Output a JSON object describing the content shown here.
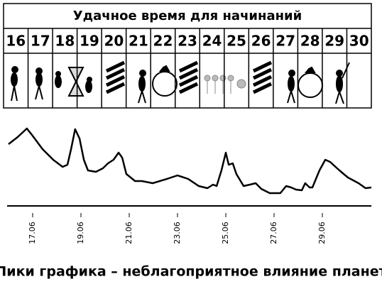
{
  "header": {
    "title": "Удачное время для начинаний",
    "days": [
      16,
      17,
      18,
      19,
      20,
      21,
      22,
      23,
      24,
      25,
      26,
      27,
      28,
      29,
      30
    ]
  },
  "chart_data": {
    "type": "line",
    "caption": "Пики графика – неблагоприятное влияние планет",
    "x": [
      16.0,
      16.38,
      16.76,
      16.97,
      17.41,
      17.85,
      18.24,
      18.44,
      18.59,
      18.76,
      18.94,
      19.12,
      19.29,
      19.62,
      19.91,
      20.12,
      20.35,
      20.56,
      20.71,
      20.88,
      21.24,
      21.53,
      21.97,
      22.56,
      23.0,
      23.44,
      23.88,
      24.24,
      24.47,
      24.62,
      24.82,
      25.0,
      25.12,
      25.29,
      25.44,
      25.74,
      26.0,
      26.24,
      26.47,
      26.82,
      27.26,
      27.5,
      27.71,
      27.91,
      28.15,
      28.29,
      28.47,
      28.59,
      28.88,
      29.12,
      29.32,
      29.71,
      30.06,
      30.5,
      30.79,
      31.03
    ],
    "values": [
      72.5,
      80.8,
      90.8,
      83.3,
      66.7,
      54.2,
      45.8,
      48.3,
      66.7,
      90,
      79.2,
      54.2,
      41.7,
      40,
      44.2,
      50,
      54.2,
      62.5,
      56.7,
      37.5,
      29.2,
      29.2,
      26.7,
      31.7,
      35.8,
      31.7,
      23.3,
      20.8,
      25,
      23.3,
      41.7,
      62.5,
      48.3,
      50,
      37.5,
      23.3,
      25,
      26.7,
      20,
      15,
      15,
      23.3,
      21.7,
      19.2,
      18.3,
      26.7,
      21.7,
      21.7,
      41.7,
      54.2,
      51.7,
      41.7,
      33.3,
      26.7,
      20.8,
      21.7
    ],
    "color": "#000000",
    "xlim": [
      16,
      31.03
    ],
    "ylim": [
      0,
      100
    ],
    "xticks": [
      {
        "value": 17,
        "label": "17.06"
      },
      {
        "value": 19,
        "label": "19.06"
      },
      {
        "value": 21,
        "label": "21.06"
      },
      {
        "value": 23,
        "label": "23.06"
      },
      {
        "value": 25,
        "label": "25.06"
      },
      {
        "value": 27,
        "label": "27.06"
      },
      {
        "value": 29,
        "label": "29.06"
      }
    ]
  }
}
